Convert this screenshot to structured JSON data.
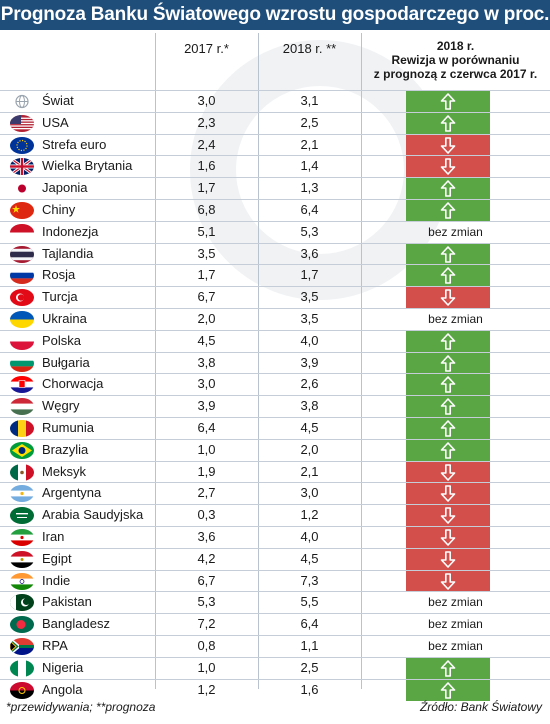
{
  "title": "Prognoza Banku Światowego wzrostu gospodarczego w proc.",
  "header": {
    "col_2017": "2017 r.*",
    "col_2018": "2018 r. **",
    "col_rev_line1": "2018 r.",
    "col_rev_line2": "Rewizja w porównaniu",
    "col_rev_line3": "z prognozą z czerwca 2017 r."
  },
  "rows": [
    {
      "country": "Świat",
      "flag": "world-flag-icon",
      "v2017": "3,0",
      "v2018": "3,1",
      "revision": "up",
      "rev_text": ""
    },
    {
      "country": "USA",
      "flag": "usa-flag-icon",
      "v2017": "2,3",
      "v2018": "2,5",
      "revision": "up",
      "rev_text": ""
    },
    {
      "country": "Strefa euro",
      "flag": "eu-flag-icon",
      "v2017": "2,4",
      "v2018": "2,1",
      "revision": "down",
      "rev_text": ""
    },
    {
      "country": "Wielka Brytania",
      "flag": "uk-flag-icon",
      "v2017": "1,6",
      "v2018": "1,4",
      "revision": "down",
      "rev_text": ""
    },
    {
      "country": "Japonia",
      "flag": "japan-flag-icon",
      "v2017": "1,7",
      "v2018": "1,3",
      "revision": "up",
      "rev_text": ""
    },
    {
      "country": "Chiny",
      "flag": "china-flag-icon",
      "v2017": "6,8",
      "v2018": "6,4",
      "revision": "up",
      "rev_text": ""
    },
    {
      "country": "Indonezja",
      "flag": "indonesia-flag-icon",
      "v2017": "5,1",
      "v2018": "5,3",
      "revision": "none",
      "rev_text": "bez zmian"
    },
    {
      "country": "Tajlandia",
      "flag": "thailand-flag-icon",
      "v2017": "3,5",
      "v2018": "3,6",
      "revision": "up",
      "rev_text": ""
    },
    {
      "country": "Rosja",
      "flag": "russia-flag-icon",
      "v2017": "1,7",
      "v2018": "1,7",
      "revision": "up",
      "rev_text": ""
    },
    {
      "country": "Turcja",
      "flag": "turkey-flag-icon",
      "v2017": "6,7",
      "v2018": "3,5",
      "revision": "down",
      "rev_text": ""
    },
    {
      "country": "Ukraina",
      "flag": "ukraine-flag-icon",
      "v2017": "2,0",
      "v2018": "3,5",
      "revision": "none",
      "rev_text": "bez zmian"
    },
    {
      "country": "Polska",
      "flag": "poland-flag-icon",
      "v2017": "4,5",
      "v2018": "4,0",
      "revision": "up",
      "rev_text": ""
    },
    {
      "country": "Bułgaria",
      "flag": "bulgaria-flag-icon",
      "v2017": "3,8",
      "v2018": "3,9",
      "revision": "up",
      "rev_text": ""
    },
    {
      "country": "Chorwacja",
      "flag": "croatia-flag-icon",
      "v2017": "3,0",
      "v2018": "2,6",
      "revision": "up",
      "rev_text": ""
    },
    {
      "country": "Węgry",
      "flag": "hungary-flag-icon",
      "v2017": "3,9",
      "v2018": "3,8",
      "revision": "up",
      "rev_text": ""
    },
    {
      "country": "Rumunia",
      "flag": "romania-flag-icon",
      "v2017": "6,4",
      "v2018": "4,5",
      "revision": "up",
      "rev_text": ""
    },
    {
      "country": "Brazylia",
      "flag": "brazil-flag-icon",
      "v2017": "1,0",
      "v2018": "2,0",
      "revision": "up",
      "rev_text": ""
    },
    {
      "country": "Meksyk",
      "flag": "mexico-flag-icon",
      "v2017": "1,9",
      "v2018": "2,1",
      "revision": "down",
      "rev_text": ""
    },
    {
      "country": "Argentyna",
      "flag": "argentina-flag-icon",
      "v2017": "2,7",
      "v2018": "3,0",
      "revision": "down",
      "rev_text": ""
    },
    {
      "country": "Arabia Saudyjska",
      "flag": "saudi-arabia-flag-icon",
      "v2017": "0,3",
      "v2018": "1,2",
      "revision": "down",
      "rev_text": ""
    },
    {
      "country": "Iran",
      "flag": "iran-flag-icon",
      "v2017": "3,6",
      "v2018": "4,0",
      "revision": "down",
      "rev_text": ""
    },
    {
      "country": "Egipt",
      "flag": "egypt-flag-icon",
      "v2017": "4,2",
      "v2018": "4,5",
      "revision": "down",
      "rev_text": ""
    },
    {
      "country": "Indie",
      "flag": "india-flag-icon",
      "v2017": "6,7",
      "v2018": "7,3",
      "revision": "down",
      "rev_text": ""
    },
    {
      "country": "Pakistan",
      "flag": "pakistan-flag-icon",
      "v2017": "5,3",
      "v2018": "5,5",
      "revision": "none",
      "rev_text": "bez zmian"
    },
    {
      "country": "Bangladesz",
      "flag": "bangladesh-flag-icon",
      "v2017": "7,2",
      "v2018": "6,4",
      "revision": "none",
      "rev_text": "bez zmian"
    },
    {
      "country": "RPA",
      "flag": "south-africa-flag-icon",
      "v2017": "0,8",
      "v2018": "1,1",
      "revision": "none",
      "rev_text": "bez zmian"
    },
    {
      "country": "Nigeria",
      "flag": "nigeria-flag-icon",
      "v2017": "1,0",
      "v2018": "2,5",
      "revision": "up",
      "rev_text": ""
    },
    {
      "country": "Angola",
      "flag": "angola-flag-icon",
      "v2017": "1,2",
      "v2018": "1,6",
      "revision": "up",
      "rev_text": ""
    }
  ],
  "footer": {
    "note": "*przewidywania;  **prognoza",
    "source": "Źródło: Bank Światowy"
  },
  "colors": {
    "title_bg": "#1f4e7a",
    "up": "#5aa544",
    "down": "#d24f4c"
  }
}
